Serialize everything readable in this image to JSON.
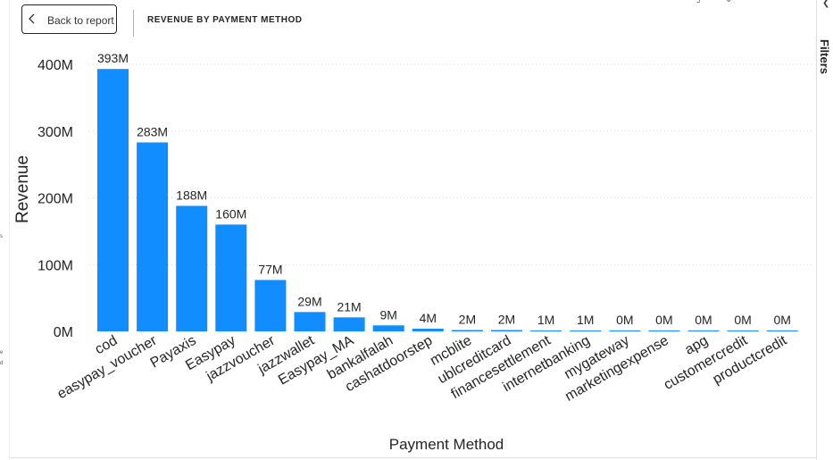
{
  "header": {
    "back_label": "Back to report",
    "visual_title": "REVENUE BY PAYMENT METHOD"
  },
  "filters_pane": {
    "label": "Filters"
  },
  "colors": {
    "bar": "#118DFF",
    "grid": "#d9d9d9",
    "text": "#252423"
  },
  "chart_data": {
    "type": "bar",
    "title": "",
    "xlabel": "Payment Method",
    "ylabel": "Revenue",
    "ylim": [
      0,
      400000000
    ],
    "yticks": [
      "0M",
      "100M",
      "200M",
      "300M",
      "400M"
    ],
    "ytick_values": [
      0,
      100000000,
      200000000,
      300000000,
      400000000
    ],
    "grid": true,
    "categories": [
      "cod",
      "easypay_voucher",
      "Payaxis",
      "Easypay",
      "jazzvoucher",
      "jazzwallet",
      "Easypay_MA",
      "bankalfalah",
      "cashatdoorstep",
      "mcblite",
      "ublcreditcard",
      "financesettlement",
      "internetbanking",
      "mygateway",
      "marketingexpense",
      "apg",
      "customercredit",
      "productcredit"
    ],
    "values": [
      393000000,
      283000000,
      188000000,
      160000000,
      77000000,
      29000000,
      21000000,
      9000000,
      4000000,
      2000000,
      2000000,
      1000000,
      1000000,
      0,
      0,
      0,
      0,
      0
    ],
    "data_labels": [
      "393M",
      "283M",
      "188M",
      "160M",
      "77M",
      "29M",
      "21M",
      "9M",
      "4M",
      "2M",
      "2M",
      "1M",
      "1M",
      "0M",
      "0M",
      "0M",
      "0M",
      "0M"
    ]
  }
}
